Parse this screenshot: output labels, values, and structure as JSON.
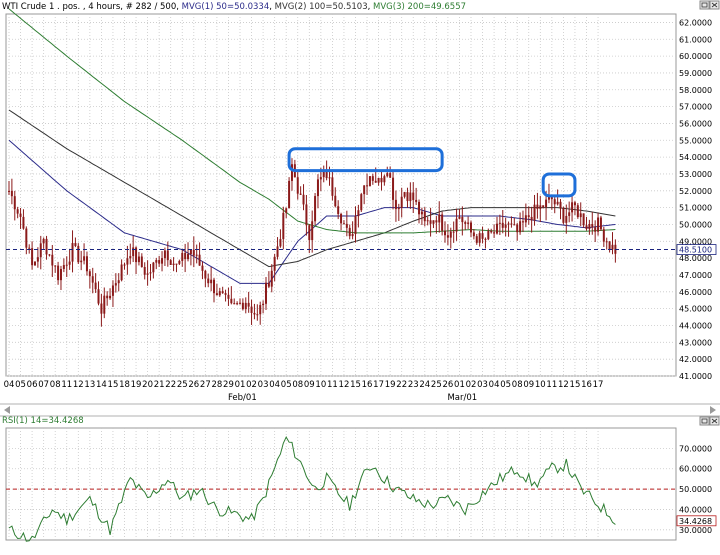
{
  "header": {
    "symbol": "WTI Crude 1 . pos. , 4 hours, # 282 / 500, ",
    "mvg1": "MVG(1) 50=50.0334",
    "mvg2": "MVG(2) 100=50.5103",
    "mvg3": "MVG(3) 200=49.6557",
    "sep": ", "
  },
  "rsi_header": {
    "label": "RSI(1) 14=34.4268"
  },
  "colors": {
    "background": "#ffffff",
    "grid": "#c8c8c8",
    "candle": "#8b1a1a",
    "mvg1": "#2b2b8a",
    "mvg2": "#333333",
    "mvg3": "#2e7d32",
    "rsi": "#2e7d32",
    "level_line": "#1a237e",
    "rsi_ref": "#b71c1c",
    "annotation": "#1e6fd9",
    "axis_text": "#000000"
  },
  "chart_data": [
    {
      "type": "candlestick",
      "title": "WTI Crude 1 . pos. , 4 hours, # 282 / 500",
      "ylim": [
        41,
        62.5
      ],
      "yticks": [
        "41.0000",
        "42.0000",
        "43.0000",
        "44.0000",
        "45.0000",
        "46.0000",
        "47.0000",
        "48.0000",
        "49.0000",
        "50.0000",
        "51.0000",
        "52.0000",
        "53.0000",
        "54.0000",
        "55.0000",
        "56.0000",
        "57.0000",
        "58.0000",
        "59.0000",
        "60.0000",
        "61.0000",
        "62.0000"
      ],
      "last_price": "48.5100",
      "xticks": [
        "04",
        "05",
        "06",
        "07",
        "08",
        "11",
        "12",
        "13",
        "14",
        "15",
        "18",
        "19",
        "20",
        "21",
        "22",
        "25",
        "26",
        "27",
        "28",
        "29",
        "01",
        "02",
        "03",
        "04",
        "05",
        "08",
        "09",
        "10",
        "11",
        "12",
        "15",
        "16",
        "17",
        "19",
        "22",
        "23",
        "24",
        "25",
        "26",
        "01",
        "02",
        "03",
        "04",
        "05",
        "08",
        "09",
        "10",
        "11",
        "12",
        "15",
        "16",
        "17"
      ],
      "month_labels": [
        {
          "label": "Feb/01",
          "index": 20
        },
        {
          "label": "Mar/01",
          "index": 39
        }
      ],
      "candles_per_day": 4,
      "anchors": [
        [
          0,
          52.0
        ],
        [
          4,
          50.5
        ],
        [
          8,
          47.5
        ],
        [
          12,
          49.0
        ],
        [
          17,
          47.0
        ],
        [
          22,
          48.5
        ],
        [
          27,
          47.5
        ],
        [
          32,
          45.0
        ],
        [
          38,
          47.0
        ],
        [
          42,
          48.5
        ],
        [
          48,
          47.0
        ],
        [
          54,
          48.5
        ],
        [
          58,
          47.5
        ],
        [
          63,
          48.5
        ],
        [
          68,
          47.0
        ],
        [
          72,
          46.0
        ],
        [
          77,
          45.0
        ],
        [
          82,
          45.5
        ],
        [
          86,
          44.5
        ],
        [
          88,
          45.5
        ],
        [
          92,
          48.0
        ],
        [
          96,
          51.0
        ],
        [
          98,
          53.5
        ],
        [
          101,
          51.5
        ],
        [
          104,
          49.5
        ],
        [
          107,
          52.5
        ],
        [
          110,
          53.0
        ],
        [
          114,
          51.0
        ],
        [
          118,
          49.0
        ],
        [
          122,
          52.0
        ],
        [
          125,
          53.0
        ],
        [
          128,
          52.5
        ],
        [
          131,
          53.5
        ],
        [
          134,
          51.0
        ],
        [
          137,
          52.0
        ],
        [
          140,
          51.5
        ],
        [
          144,
          50.0
        ],
        [
          148,
          50.5
        ],
        [
          152,
          49.5
        ],
        [
          156,
          50.5
        ],
        [
          160,
          49.5
        ],
        [
          164,
          49.0
        ],
        [
          168,
          49.5
        ],
        [
          172,
          50.0
        ],
        [
          176,
          49.5
        ],
        [
          180,
          50.5
        ],
        [
          184,
          51.0
        ],
        [
          188,
          51.5
        ],
        [
          192,
          50.5
        ],
        [
          196,
          51.0
        ],
        [
          200,
          50.0
        ],
        [
          204,
          50.0
        ],
        [
          208,
          48.8
        ],
        [
          210,
          48.5
        ]
      ],
      "moving_averages": [
        {
          "name": "MVG(1) 50",
          "value": 50.0334,
          "points": [
            [
              0,
              55.0
            ],
            [
              20,
              52.0
            ],
            [
              40,
              49.5
            ],
            [
              60,
              48.5
            ],
            [
              80,
              46.5
            ],
            [
              90,
              46.5
            ],
            [
              100,
              49.0
            ],
            [
              110,
              50.5
            ],
            [
              120,
              50.5
            ],
            [
              130,
              51.0
            ],
            [
              140,
              51.0
            ],
            [
              150,
              50.5
            ],
            [
              160,
              50.5
            ],
            [
              170,
              50.5
            ],
            [
              180,
              50.3
            ],
            [
              190,
              50.0
            ],
            [
              200,
              49.8
            ],
            [
              210,
              50.0
            ]
          ]
        },
        {
          "name": "MVG(2) 100",
          "value": 50.5103,
          "points": [
            [
              0,
              56.8
            ],
            [
              20,
              54.5
            ],
            [
              40,
              52.5
            ],
            [
              60,
              50.5
            ],
            [
              80,
              48.5
            ],
            [
              90,
              47.5
            ],
            [
              100,
              47.8
            ],
            [
              110,
              48.5
            ],
            [
              120,
              49.0
            ],
            [
              130,
              49.5
            ],
            [
              140,
              50.2
            ],
            [
              150,
              50.8
            ],
            [
              160,
              51.0
            ],
            [
              170,
              51.0
            ],
            [
              180,
              51.0
            ],
            [
              190,
              51.0
            ],
            [
              200,
              50.8
            ],
            [
              210,
              50.5
            ]
          ]
        },
        {
          "name": "MVG(3) 200",
          "value": 49.6557,
          "points": [
            [
              0,
              62.8
            ],
            [
              20,
              60.0
            ],
            [
              40,
              57.3
            ],
            [
              60,
              55.0
            ],
            [
              80,
              52.5
            ],
            [
              90,
              51.5
            ],
            [
              100,
              50.2
            ],
            [
              110,
              49.7
            ],
            [
              120,
              49.5
            ],
            [
              130,
              49.5
            ],
            [
              140,
              49.5
            ],
            [
              150,
              49.6
            ],
            [
              160,
              49.7
            ],
            [
              170,
              49.6
            ],
            [
              180,
              49.6
            ],
            [
              190,
              49.6
            ],
            [
              200,
              49.6
            ],
            [
              210,
              49.7
            ]
          ]
        }
      ]
    },
    {
      "type": "line",
      "title": "RSI(1) 14=34.4268",
      "ylim": [
        25,
        80
      ],
      "yticks": [
        "30.0000",
        "40.0000",
        "50.0000",
        "60.0000",
        "70.0000"
      ],
      "reference_line": 50,
      "last_value": "34.4268",
      "points": [
        [
          0,
          30
        ],
        [
          8,
          25
        ],
        [
          15,
          40
        ],
        [
          20,
          35
        ],
        [
          28,
          45
        ],
        [
          35,
          30
        ],
        [
          42,
          55
        ],
        [
          48,
          45
        ],
        [
          55,
          55
        ],
        [
          60,
          45
        ],
        [
          66,
          50
        ],
        [
          72,
          40
        ],
        [
          78,
          38
        ],
        [
          84,
          35
        ],
        [
          88,
          45
        ],
        [
          92,
          60
        ],
        [
          96,
          75
        ],
        [
          99,
          68
        ],
        [
          102,
          60
        ],
        [
          106,
          50
        ],
        [
          110,
          55
        ],
        [
          114,
          48
        ],
        [
          118,
          42
        ],
        [
          122,
          55
        ],
        [
          126,
          62
        ],
        [
          130,
          55
        ],
        [
          134,
          50
        ],
        [
          140,
          45
        ],
        [
          146,
          42
        ],
        [
          152,
          45
        ],
        [
          158,
          40
        ],
        [
          164,
          48
        ],
        [
          170,
          55
        ],
        [
          176,
          60
        ],
        [
          182,
          52
        ],
        [
          188,
          60
        ],
        [
          193,
          62
        ],
        [
          198,
          50
        ],
        [
          202,
          45
        ],
        [
          206,
          40
        ],
        [
          210,
          35
        ]
      ]
    }
  ]
}
